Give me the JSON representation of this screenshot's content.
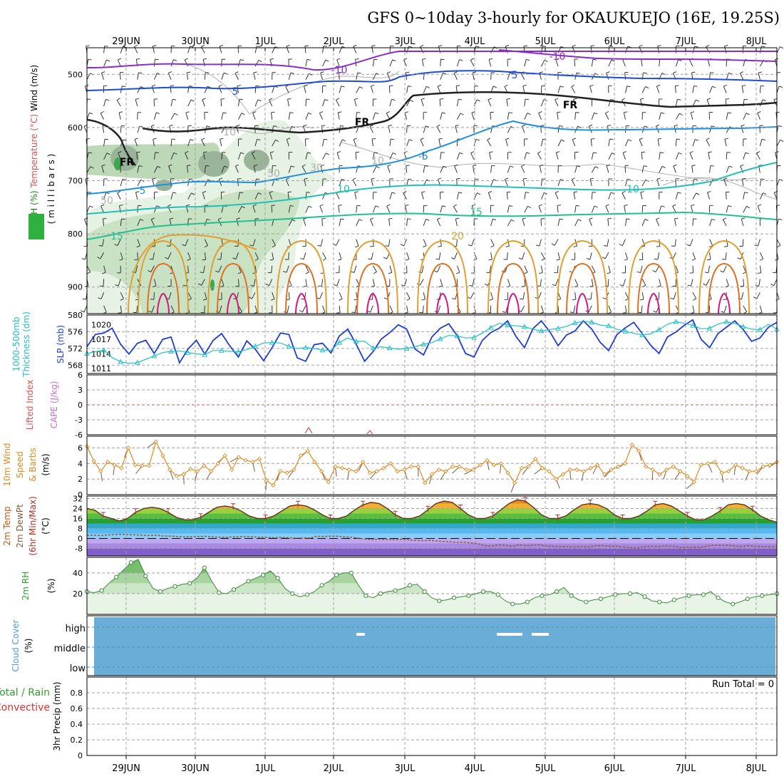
{
  "title": "GFS 0~10day 3-hourly for OKAUKUEJO (16E, 19.25S)",
  "dates": [
    "29JUN",
    "30JUN",
    "1JUL",
    "2JUL",
    "3JUL",
    "4JUL",
    "5JUL",
    "6JUL",
    "7JUL",
    "8JUL"
  ],
  "run_total": "Run Total = 0",
  "colors": {
    "frame": "#000000",
    "grid": "#a0a0a0",
    "slp": "#1e3cd6",
    "thick": "#20c0c8",
    "wind": "#e08a20",
    "rh": "#30a030",
    "cloud": "#6aaed8"
  },
  "chart_data": [
    {
      "type": "contour",
      "panel": "upper-air",
      "ylabel_parts": [
        "RH (%)",
        "Temperature (°C)",
        "Wind (m/s)"
      ],
      "ylabel_units": "( m i l l i b a r s )",
      "yticks": [
        500,
        600,
        700,
        800,
        900
      ],
      "ylim": [
        450,
        950
      ],
      "contour_labels": [
        "-10",
        "-10",
        "5",
        "5",
        "5",
        "-5",
        "10",
        "10",
        "15",
        "15",
        "20",
        "FR",
        "FR",
        "FR",
        "FR",
        "10",
        "30",
        "50",
        "50",
        "10"
      ]
    },
    {
      "type": "line",
      "panel": "thickness-slp",
      "ylabel_left": "1000-500mb Thickness (dm)",
      "ylabel_right": "SLP (mb)",
      "yticks_left": [
        568,
        572,
        576,
        580
      ],
      "yticks_right": [
        1011,
        1014,
        1017,
        1020
      ],
      "series": [
        {
          "name": "SLP (mb)",
          "axis": "right",
          "values": [
            1015.5,
            1018.0,
            1018.3,
            1019.3,
            1016.0,
            1014.0,
            1016.2,
            1016.8,
            1014.1,
            1017.0,
            1017.5,
            1012.2,
            1015.0,
            1016.8,
            1014.0,
            1016.8,
            1018.2,
            1015.6,
            1013.4,
            1016.7,
            1015.0,
            1012.6,
            1015.3,
            1018.3,
            1018.0,
            1013.2,
            1012.5,
            1015.9,
            1016.2,
            1014.2,
            1017.7,
            1019.1,
            1016.0,
            1012.5,
            1014.5,
            1017.1,
            1018.4,
            1020.0,
            1019.1,
            1015.0,
            1013.8,
            1017.5,
            1019.3,
            1020.2,
            1017.8,
            1014.1,
            1013.4,
            1016.8,
            1018.4,
            1019.3,
            1020.8,
            1017.6,
            1015.3,
            1019.2,
            1020.8,
            1018.6,
            1015.7,
            1017.9,
            1018.7,
            1020.8,
            1019.1,
            1016.4,
            1014.7,
            1018.0,
            1019.4,
            1020.5,
            1018.2,
            1015.8,
            1014.1,
            1017.5,
            1018.5,
            1019.9,
            1021.0,
            1017.0,
            1015.3,
            1018.2,
            1019.5,
            1020.8,
            1019.0,
            1016.6,
            1017.3,
            1019.5,
            1020.5
          ]
        },
        {
          "name": "1000-500mb Thickness (dm)",
          "axis": "left",
          "values": [
            570.8,
            571.2,
            571.6,
            569.8,
            568.8,
            568.4,
            568.6,
            569.4,
            570.2,
            571.0,
            571.3,
            571.4,
            571.0,
            570.7,
            570.5,
            571.5,
            571.5,
            571.3,
            571.2,
            571.7,
            572.5,
            573.3,
            573.4,
            573.3,
            572.5,
            572.0,
            572.2,
            572.0,
            571.6,
            571.5,
            573.4,
            574.5,
            573.7,
            573.7,
            572.1,
            572.4,
            572.1,
            571.8,
            572.0,
            572.4,
            573.0,
            573.4,
            574.3,
            575.1,
            575.0,
            574.5,
            574.6,
            575.7,
            577.0,
            578.0,
            577.6,
            577.4,
            577.2,
            576.6,
            576.2,
            576.5,
            576.8,
            577.3,
            578.1,
            578.5,
            578.3,
            577.6,
            577.4,
            576.6,
            576.1,
            575.6,
            575.2,
            575.5,
            576.5,
            577.8,
            578.4,
            578.0,
            577.5,
            576.7,
            576.8,
            577.8,
            578.4,
            578.0,
            577.2,
            576.6,
            576.5,
            577.8,
            576.6
          ]
        }
      ]
    },
    {
      "type": "line",
      "panel": "lifted-index-cape",
      "ylabel_left": "Lifted Index",
      "ylabel_right": "CAPE (J/kg)",
      "yticks": [
        "6",
        "3",
        "0",
        "-3",
        "-6"
      ],
      "ylim": [
        -6,
        6
      ]
    },
    {
      "type": "line",
      "panel": "10m-wind",
      "ylabel_parts": [
        "10m Wind",
        "Speed",
        "& Barbs",
        "(m/s)"
      ],
      "yticks": [
        0,
        2,
        4,
        6
      ],
      "ylim": [
        0,
        7.5
      ],
      "series": [
        {
          "name": "10m Wind Speed",
          "values": [
            6.2,
            4.3,
            3.0,
            4.2,
            3.8,
            3.4,
            6.0,
            3.8,
            3.7,
            3.7,
            6.8,
            5.0,
            3.2,
            2.4,
            2.6,
            3.3,
            3.0,
            3.7,
            3.0,
            4.0,
            5.0,
            3.2,
            4.8,
            4.4,
            4.2,
            4.6,
            1.8,
            1.2,
            3.0,
            2.8,
            3.2,
            5.0,
            5.6,
            4.2,
            3.0,
            1.6,
            3.6,
            3.4,
            3.2,
            3.0,
            4.2,
            2.8,
            3.0,
            3.4,
            4.0,
            3.0,
            3.2,
            3.6,
            3.6,
            1.5,
            2.6,
            3.2,
            3.0,
            3.6,
            3.6,
            3.2,
            3.2,
            3.8,
            4.4,
            3.8,
            4.0,
            2.8,
            1.5,
            3.4,
            3.6,
            4.6,
            3.4,
            3.0,
            2.0,
            2.6,
            3.2,
            3.2,
            3.0,
            3.4,
            3.8,
            2.6,
            3.2,
            3.6,
            4.0,
            6.4,
            5.6,
            3.6,
            3.2,
            2.6,
            3.2,
            3.6,
            3.0,
            2.4,
            1.6,
            3.8,
            4.0,
            4.2,
            2.8,
            3.0,
            3.8,
            3.4,
            3.0,
            3.0,
            3.6,
            3.8,
            4.2
          ]
        }
      ]
    },
    {
      "type": "area",
      "panel": "2m-temp",
      "ylabel_parts": [
        "2m Temp",
        "2m DewPt",
        "(6hr Min/Max)",
        "(°C)"
      ],
      "yticks": [
        -8,
        0,
        8,
        16,
        24,
        32
      ],
      "ylim": [
        -14,
        34
      ],
      "series": [
        {
          "name": "2m Temp",
          "values": [
            24,
            22.5,
            18,
            16,
            14,
            16,
            21,
            24,
            25,
            24,
            21,
            17,
            15,
            15,
            17,
            21,
            25,
            26,
            25,
            22,
            18,
            16,
            16,
            18,
            22,
            26,
            27,
            26,
            23,
            19,
            16,
            16,
            18,
            23,
            27,
            29,
            28,
            24,
            19,
            16,
            16,
            18,
            23,
            28,
            30,
            29,
            24,
            19,
            16,
            16,
            18,
            23,
            28,
            31,
            30,
            25,
            19,
            16,
            16,
            18,
            23,
            27,
            28,
            27,
            24,
            19,
            16,
            16,
            18,
            22,
            27,
            28,
            26,
            22,
            18,
            15,
            15,
            18,
            22,
            27,
            28,
            27,
            23,
            18,
            15,
            13
          ]
        },
        {
          "name": "2m DewPt",
          "values": [
            2.5,
            2.6,
            2.3,
            2.8,
            3.2,
            3.3,
            3.0,
            2.9,
            2.6,
            2.4,
            2.6,
            2.0,
            1.9,
            1.6,
            1.2,
            1.4,
            1.6,
            1.7,
            1.3,
            1.0,
            1.0,
            1.2,
            1.4,
            1.5,
            1.2,
            1.0,
            0.8,
            0.6,
            0.9,
            0.5,
            0.3,
            0.5,
            0.3,
            1.8,
            1.6,
            1.9,
            1.8,
            1.2,
            0.9,
            0.2,
            -0.6,
            -0.8,
            -0.6,
            -0.8,
            -0.9,
            -0.7,
            -1.0,
            -1.6,
            -1.8,
            -1.6,
            -1.9,
            -2.4,
            -2.6,
            -3.2,
            -2.9,
            -3.5,
            -4.1,
            -5.8,
            -6.1,
            -5.1,
            -5.5,
            -6.4,
            -5.1,
            -5.8,
            -5.3,
            -5.1,
            -6.0,
            -6.3,
            -6.5,
            -6.6,
            -6.8,
            -6.4,
            -6.9,
            -5.8,
            -5.8,
            -6.2,
            -6.3,
            -6.8,
            -7.3,
            -7.6,
            -6.5,
            -6.3,
            -6.5,
            -6.1,
            -6.1,
            -7.1,
            -7.1,
            -6.9,
            -7.1,
            -6.1,
            -5.3,
            -5.5,
            -5.5,
            -6.0,
            -6.6,
            -5.7,
            -6.4,
            -6.4,
            -6.5,
            -6.5
          ]
        }
      ]
    },
    {
      "type": "area",
      "panel": "2m-rh",
      "ylabel_parts": [
        "2m RH",
        "(%)"
      ],
      "yticks": [
        20,
        40
      ],
      "ylim": [
        0,
        55
      ],
      "series": [
        {
          "name": "2m RH",
          "values": [
            22,
            21,
            23,
            30,
            36,
            43,
            50,
            53,
            37,
            25,
            22,
            25,
            27,
            29,
            30,
            35,
            45,
            32,
            21,
            20,
            24,
            28,
            32,
            35,
            38,
            42,
            35,
            25,
            20,
            17,
            19,
            22,
            28,
            32,
            38,
            40,
            40,
            28,
            18,
            16,
            20,
            22,
            23,
            25,
            28,
            29,
            22,
            16,
            13,
            14,
            16,
            17,
            18,
            20,
            22,
            22,
            19,
            13,
            10,
            10,
            12,
            16,
            18,
            19,
            22,
            26,
            18,
            14,
            12,
            14,
            15,
            17,
            19,
            20,
            20,
            21,
            17,
            13,
            12,
            11,
            14,
            16,
            18,
            19,
            19,
            22,
            16,
            12,
            10,
            12,
            15,
            17,
            18,
            19,
            20
          ]
        }
      ]
    },
    {
      "type": "heatmap",
      "panel": "cloud-cover",
      "ylabel_parts": [
        "Cloud Cover",
        "(%)"
      ],
      "categories": [
        "high",
        "middle",
        "low"
      ]
    },
    {
      "type": "bar",
      "panel": "3hr-precip",
      "ylabel_parts": [
        "3hr Precip (mm)",
        "Total / Rain",
        "Convective"
      ],
      "yticks": [
        "0",
        "0.2",
        "0.4",
        "0.6",
        "0.8"
      ],
      "ylim": [
        0,
        1
      ]
    }
  ]
}
